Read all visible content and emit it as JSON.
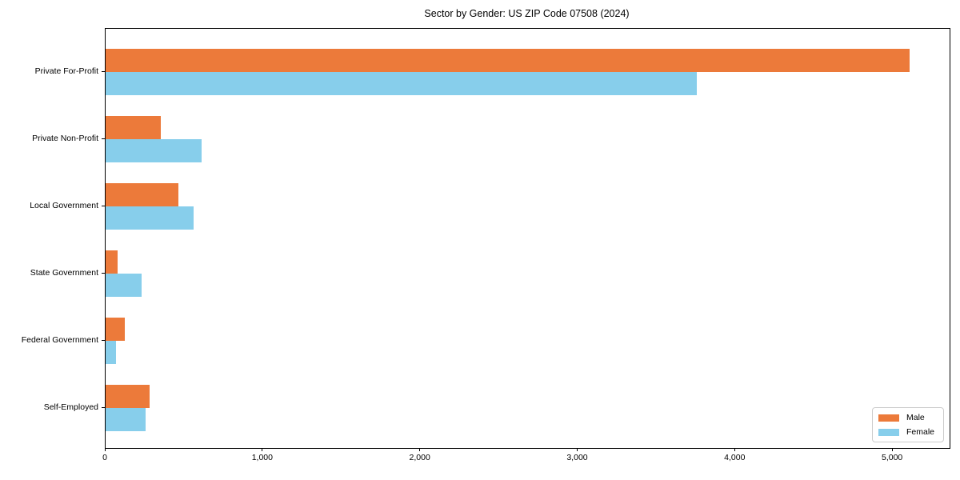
{
  "chart_data": {
    "type": "bar",
    "orientation": "horizontal",
    "title": "Sector by Gender: US ZIP Code 07508 (2024)",
    "xlabel": "",
    "ylabel": "",
    "categories": [
      "Private For-Profit",
      "Private Non-Profit",
      "Local Government",
      "State Government",
      "Federal Government",
      "Self-Employed"
    ],
    "series": [
      {
        "name": "Male",
        "color": "#ec7a3a",
        "values": [
          5105,
          350,
          460,
          75,
          120,
          280
        ]
      },
      {
        "name": "Female",
        "color": "#87ceeb",
        "values": [
          3755,
          610,
          560,
          230,
          65,
          255
        ]
      }
    ],
    "xlim": [
      0,
      5360
    ],
    "x_ticks": [
      {
        "value": 0,
        "label": "0"
      },
      {
        "value": 1000,
        "label": "1,000"
      },
      {
        "value": 2000,
        "label": "2,000"
      },
      {
        "value": 3000,
        "label": "3,000"
      },
      {
        "value": 4000,
        "label": "4,000"
      },
      {
        "value": 5000,
        "label": "5,000"
      }
    ],
    "grid": false,
    "legend_position": "lower right"
  }
}
